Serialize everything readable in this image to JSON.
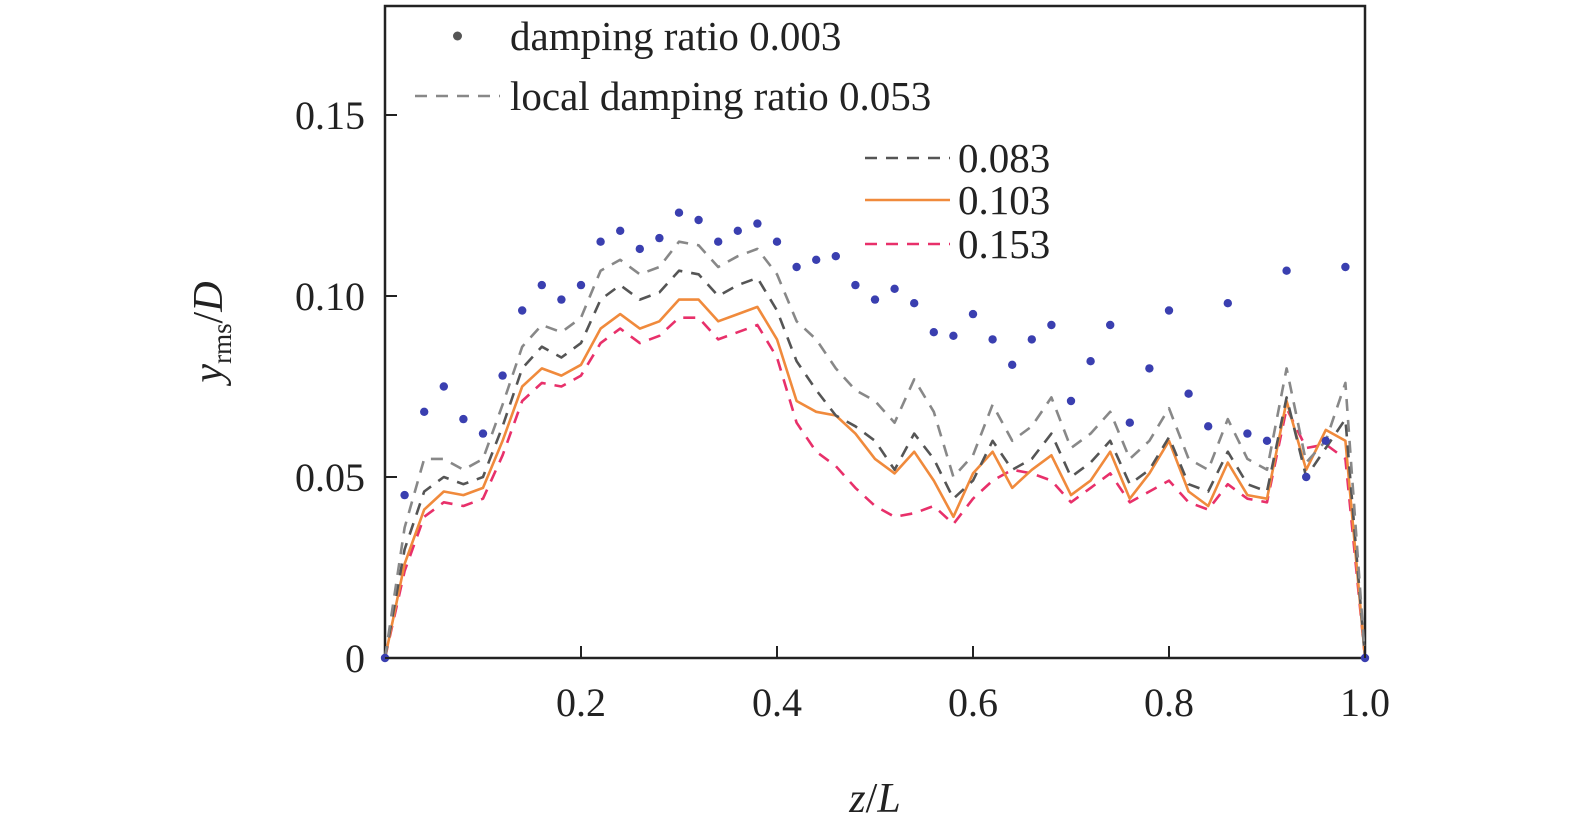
{
  "chart_data": {
    "type": "line",
    "xlabel": {
      "var": "z",
      "slash": "/",
      "den": "L"
    },
    "ylabel": {
      "var": "y",
      "sub": "rms",
      "slash": "/",
      "den": "D"
    },
    "xlim": [
      0,
      1.0
    ],
    "ylim": [
      0,
      0.18
    ],
    "x_ticks": [
      0.2,
      0.4,
      0.6,
      0.8,
      1.0
    ],
    "x_tick_labels": [
      "0.2",
      "0.4",
      "0.6",
      "0.8",
      "1.0"
    ],
    "y_ticks": [
      0,
      0.05,
      0.1,
      0.15
    ],
    "y_tick_labels": [
      "0",
      "0.05",
      "0.10",
      "0.15"
    ],
    "grid": false,
    "legend_placement": "top",
    "x": [
      0,
      0.02,
      0.04,
      0.06,
      0.08,
      0.1,
      0.12,
      0.14,
      0.16,
      0.18,
      0.2,
      0.22,
      0.24,
      0.26,
      0.28,
      0.3,
      0.32,
      0.34,
      0.36,
      0.38,
      0.4,
      0.42,
      0.44,
      0.46,
      0.48,
      0.5,
      0.52,
      0.54,
      0.56,
      0.58,
      0.6,
      0.62,
      0.64,
      0.66,
      0.68,
      0.7,
      0.72,
      0.74,
      0.76,
      0.78,
      0.8,
      0.82,
      0.84,
      0.86,
      0.88,
      0.9,
      0.92,
      0.94,
      0.96,
      0.98,
      1.0
    ],
    "series": [
      {
        "name": "damping ratio 0.003",
        "style": "dots",
        "color": "#3a3fb0",
        "values": [
          0,
          0.045,
          0.068,
          0.075,
          0.066,
          0.062,
          0.078,
          0.096,
          0.103,
          0.099,
          0.103,
          0.115,
          0.118,
          0.113,
          0.116,
          0.123,
          0.121,
          0.115,
          0.118,
          0.12,
          0.115,
          0.108,
          0.11,
          0.111,
          0.103,
          0.099,
          0.102,
          0.098,
          0.09,
          0.089,
          0.095,
          0.088,
          0.081,
          0.088,
          0.092,
          0.071,
          0.082,
          0.092,
          0.065,
          0.08,
          0.096,
          0.073,
          0.064,
          0.098,
          0.062,
          0.06,
          0.107,
          0.05,
          0.06,
          0.108,
          0
        ]
      },
      {
        "name": "local damping ratio 0.053",
        "style": "dash",
        "color": "#888888",
        "values": [
          0,
          0.036,
          0.055,
          0.055,
          0.052,
          0.055,
          0.07,
          0.086,
          0.092,
          0.09,
          0.094,
          0.107,
          0.11,
          0.106,
          0.108,
          0.115,
          0.114,
          0.108,
          0.111,
          0.113,
          0.106,
          0.093,
          0.088,
          0.08,
          0.074,
          0.071,
          0.065,
          0.077,
          0.068,
          0.05,
          0.056,
          0.07,
          0.06,
          0.064,
          0.072,
          0.058,
          0.062,
          0.068,
          0.055,
          0.06,
          0.069,
          0.055,
          0.052,
          0.066,
          0.055,
          0.052,
          0.08,
          0.054,
          0.06,
          0.076,
          0
        ]
      },
      {
        "name": "0.083",
        "style": "dash",
        "color": "#555555",
        "values": [
          0,
          0.03,
          0.046,
          0.05,
          0.048,
          0.05,
          0.064,
          0.08,
          0.086,
          0.083,
          0.087,
          0.099,
          0.103,
          0.099,
          0.101,
          0.107,
          0.106,
          0.1,
          0.103,
          0.105,
          0.096,
          0.082,
          0.074,
          0.067,
          0.064,
          0.06,
          0.052,
          0.062,
          0.055,
          0.044,
          0.049,
          0.06,
          0.052,
          0.055,
          0.062,
          0.05,
          0.054,
          0.06,
          0.048,
          0.052,
          0.061,
          0.048,
          0.046,
          0.057,
          0.048,
          0.046,
          0.072,
          0.05,
          0.058,
          0.066,
          0
        ]
      },
      {
        "name": "0.103",
        "style": "solid",
        "color": "#f08a3c",
        "values": [
          0,
          0.026,
          0.041,
          0.046,
          0.045,
          0.047,
          0.06,
          0.075,
          0.08,
          0.078,
          0.081,
          0.091,
          0.095,
          0.091,
          0.093,
          0.099,
          0.099,
          0.093,
          0.095,
          0.097,
          0.088,
          0.071,
          0.068,
          0.067,
          0.062,
          0.055,
          0.051,
          0.057,
          0.049,
          0.039,
          0.051,
          0.057,
          0.047,
          0.052,
          0.056,
          0.045,
          0.049,
          0.057,
          0.044,
          0.051,
          0.06,
          0.046,
          0.042,
          0.054,
          0.045,
          0.044,
          0.071,
          0.052,
          0.063,
          0.06,
          0
        ]
      },
      {
        "name": "0.153",
        "style": "dash",
        "color": "#e8306a",
        "values": [
          0,
          0.024,
          0.039,
          0.043,
          0.042,
          0.044,
          0.056,
          0.071,
          0.076,
          0.075,
          0.078,
          0.087,
          0.091,
          0.087,
          0.089,
          0.094,
          0.094,
          0.088,
          0.09,
          0.092,
          0.083,
          0.065,
          0.057,
          0.053,
          0.047,
          0.042,
          0.039,
          0.04,
          0.042,
          0.037,
          0.044,
          0.049,
          0.052,
          0.051,
          0.049,
          0.043,
          0.047,
          0.051,
          0.043,
          0.046,
          0.049,
          0.043,
          0.041,
          0.048,
          0.044,
          0.043,
          0.069,
          0.058,
          0.059,
          0.055,
          0
        ]
      }
    ]
  }
}
